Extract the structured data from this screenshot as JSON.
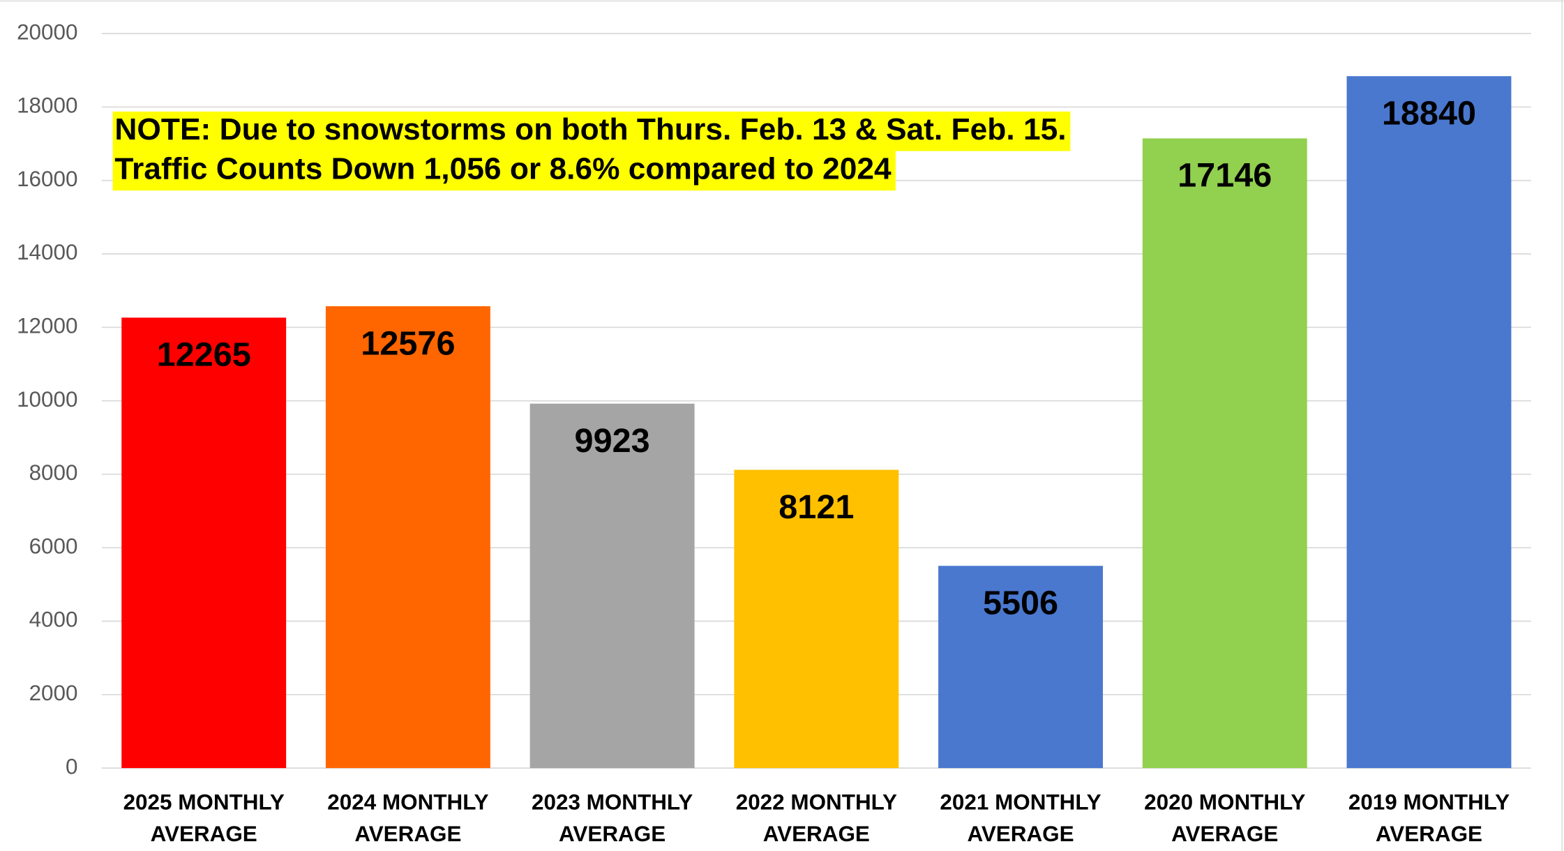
{
  "chart_data": {
    "type": "bar",
    "annotation": [
      "NOTE: Due to snowstorms on both Thurs. Feb. 13 & Sat. Feb. 15.",
      "Traffic Counts Down 1,056 or 8.6% compared to 2024"
    ],
    "annotation_highlight": "#ffff00",
    "categories": [
      [
        "2025 MONTHLY",
        "AVERAGE"
      ],
      [
        "2024 MONTHLY",
        "AVERAGE"
      ],
      [
        "2023 MONTHLY",
        "AVERAGE"
      ],
      [
        "2022 MONTHLY",
        "AVERAGE"
      ],
      [
        "2021 MONTHLY",
        "AVERAGE"
      ],
      [
        "2020 MONTHLY",
        "AVERAGE"
      ],
      [
        "2019 MONTHLY",
        "AVERAGE"
      ]
    ],
    "values": [
      12265,
      12576,
      9923,
      8121,
      5506,
      17146,
      18840
    ],
    "colors": [
      "#ff0000",
      "#ff6600",
      "#a5a5a5",
      "#ffc000",
      "#4a78cf",
      "#92d050",
      "#4a78cf"
    ],
    "ylim": [
      0,
      20000
    ],
    "yticks": [
      0,
      2000,
      4000,
      6000,
      8000,
      10000,
      12000,
      14000,
      16000,
      18000,
      20000
    ],
    "grid": true
  }
}
